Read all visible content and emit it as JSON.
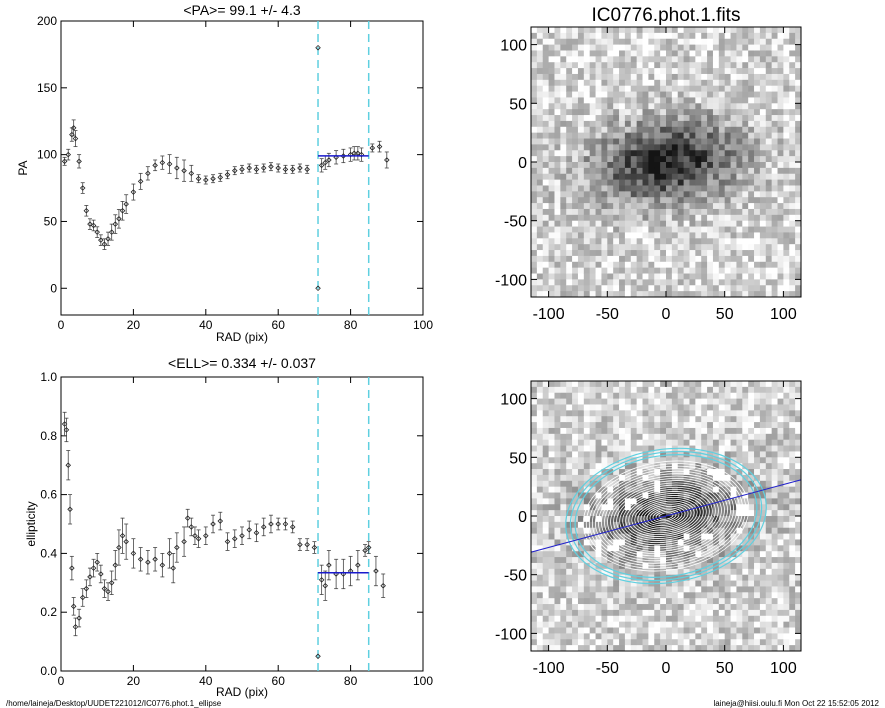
{
  "footer": {
    "left": "/home/laineja/Desktop/UUDET221012/IC0776.phot.1_ellipse",
    "right": "laineja@hiisi.oulu.fi  Mon Oct 22 15:52:05 2012"
  },
  "colors": {
    "mean_line": "#1a1acc",
    "range_line": "#5fd0e0",
    "ellipse": "#5fd0e0"
  },
  "chart_data": [
    {
      "id": "pa",
      "type": "scatter",
      "title": "<PA>=  99.1 +/-   4.3",
      "xlabel": "RAD (pix)",
      "ylabel": "PA",
      "xlim": [
        0,
        100
      ],
      "ylim": [
        -20,
        200
      ],
      "xticks": [
        0,
        20,
        40,
        60,
        80,
        100
      ],
      "yticks": [
        0,
        50,
        100,
        150,
        200
      ],
      "mean": 99.1,
      "mean_range": [
        71,
        85
      ],
      "vlines": [
        71,
        85
      ],
      "points": [
        [
          1,
          95,
          3
        ],
        [
          2,
          100,
          4
        ],
        [
          3,
          115,
          5
        ],
        [
          3.5,
          120,
          6
        ],
        [
          4,
          112,
          6
        ],
        [
          5,
          95,
          5
        ],
        [
          6,
          75,
          4
        ],
        [
          7,
          58,
          4
        ],
        [
          8,
          48,
          4
        ],
        [
          9,
          47,
          4
        ],
        [
          10,
          42,
          4
        ],
        [
          11,
          36,
          4
        ],
        [
          12,
          33,
          4
        ],
        [
          13,
          37,
          5
        ],
        [
          14,
          42,
          6
        ],
        [
          15,
          48,
          7
        ],
        [
          16,
          52,
          7
        ],
        [
          17,
          58,
          7
        ],
        [
          18,
          63,
          7
        ],
        [
          20,
          72,
          6
        ],
        [
          22,
          80,
          6
        ],
        [
          24,
          86,
          5
        ],
        [
          26,
          92,
          4
        ],
        [
          28,
          94,
          5
        ],
        [
          30,
          93,
          7
        ],
        [
          32,
          90,
          8
        ],
        [
          34,
          88,
          8
        ],
        [
          36,
          86,
          6
        ],
        [
          38,
          82,
          3
        ],
        [
          40,
          81,
          3
        ],
        [
          42,
          82,
          3
        ],
        [
          44,
          83,
          3
        ],
        [
          46,
          85,
          3
        ],
        [
          48,
          88,
          3
        ],
        [
          50,
          89,
          3
        ],
        [
          52,
          90,
          3
        ],
        [
          54,
          89,
          3
        ],
        [
          56,
          90,
          3
        ],
        [
          58,
          91,
          3
        ],
        [
          60,
          90,
          3
        ],
        [
          62,
          89,
          3
        ],
        [
          64,
          89,
          3
        ],
        [
          66,
          90,
          3
        ],
        [
          68,
          89,
          3
        ],
        [
          71,
          180,
          0
        ],
        [
          71,
          0,
          0
        ],
        [
          72,
          92,
          5
        ],
        [
          73,
          94,
          5
        ],
        [
          74,
          96,
          5
        ],
        [
          76,
          98,
          5
        ],
        [
          78,
          99,
          5
        ],
        [
          80,
          100,
          5
        ],
        [
          81,
          101,
          5
        ],
        [
          82,
          101,
          5
        ],
        [
          83,
          100,
          5
        ],
        [
          86,
          105,
          3
        ],
        [
          88,
          106,
          4
        ],
        [
          90,
          96,
          6
        ]
      ]
    },
    {
      "id": "image",
      "type": "heatmap",
      "title": "IC0776.phot.1.fits",
      "xlim": [
        -115,
        115
      ],
      "ylim": [
        -115,
        115
      ],
      "xticks": [
        -100,
        -50,
        0,
        50,
        100
      ],
      "yticks": [
        -100,
        -50,
        0,
        50,
        100
      ],
      "galaxy": {
        "center": [
          0,
          0
        ],
        "major": 70,
        "minor": 40,
        "pa": 99.1
      }
    },
    {
      "id": "ell",
      "type": "scatter",
      "title": "<ELL>= 0.334 +/-  0.037",
      "xlabel": "RAD (pix)",
      "ylabel": "ellipticity",
      "xlim": [
        0,
        100
      ],
      "ylim": [
        0,
        1
      ],
      "xticks": [
        0,
        20,
        40,
        60,
        80,
        100
      ],
      "yticks": [
        0.0,
        0.2,
        0.4,
        0.6,
        0.8,
        1.0
      ],
      "mean": 0.334,
      "mean_range": [
        71,
        85
      ],
      "vlines": [
        71,
        85
      ],
      "points": [
        [
          1,
          0.84,
          0.04
        ],
        [
          1.5,
          0.82,
          0.04
        ],
        [
          2,
          0.7,
          0.05
        ],
        [
          2.5,
          0.55,
          0.05
        ],
        [
          3,
          0.35,
          0.04
        ],
        [
          3.5,
          0.22,
          0.03
        ],
        [
          4,
          0.15,
          0.03
        ],
        [
          5,
          0.18,
          0.03
        ],
        [
          6,
          0.25,
          0.03
        ],
        [
          7,
          0.28,
          0.03
        ],
        [
          8,
          0.32,
          0.03
        ],
        [
          9,
          0.35,
          0.03
        ],
        [
          10,
          0.37,
          0.03
        ],
        [
          11,
          0.33,
          0.03
        ],
        [
          12,
          0.28,
          0.03
        ],
        [
          13,
          0.27,
          0.03
        ],
        [
          14,
          0.3,
          0.04
        ],
        [
          15,
          0.36,
          0.05
        ],
        [
          16,
          0.42,
          0.06
        ],
        [
          17,
          0.46,
          0.06
        ],
        [
          18,
          0.44,
          0.06
        ],
        [
          20,
          0.4,
          0.05
        ],
        [
          22,
          0.38,
          0.04
        ],
        [
          24,
          0.37,
          0.04
        ],
        [
          26,
          0.38,
          0.04
        ],
        [
          28,
          0.36,
          0.04
        ],
        [
          30,
          0.4,
          0.05
        ],
        [
          31,
          0.35,
          0.05
        ],
        [
          32,
          0.42,
          0.05
        ],
        [
          34,
          0.44,
          0.05
        ],
        [
          35,
          0.52,
          0.03
        ],
        [
          36,
          0.49,
          0.03
        ],
        [
          37,
          0.46,
          0.03
        ],
        [
          38,
          0.45,
          0.03
        ],
        [
          40,
          0.46,
          0.03
        ],
        [
          42,
          0.5,
          0.03
        ],
        [
          44,
          0.51,
          0.03
        ],
        [
          46,
          0.44,
          0.03
        ],
        [
          48,
          0.45,
          0.03
        ],
        [
          50,
          0.46,
          0.03
        ],
        [
          52,
          0.48,
          0.03
        ],
        [
          54,
          0.47,
          0.03
        ],
        [
          56,
          0.49,
          0.03
        ],
        [
          58,
          0.5,
          0.03
        ],
        [
          60,
          0.5,
          0.02
        ],
        [
          62,
          0.5,
          0.02
        ],
        [
          64,
          0.49,
          0.02
        ],
        [
          66,
          0.43,
          0.02
        ],
        [
          68,
          0.43,
          0.02
        ],
        [
          70,
          0.42,
          0.02
        ],
        [
          71,
          0.05,
          0
        ],
        [
          72,
          0.31,
          0.05
        ],
        [
          73,
          0.29,
          0.05
        ],
        [
          74,
          0.36,
          0.05
        ],
        [
          76,
          0.33,
          0.05
        ],
        [
          78,
          0.33,
          0.05
        ],
        [
          80,
          0.34,
          0.05
        ],
        [
          82,
          0.36,
          0.05
        ],
        [
          84,
          0.41,
          0.02
        ],
        [
          85,
          0.42,
          0.02
        ],
        [
          87,
          0.34,
          0.05
        ],
        [
          89,
          0.29,
          0.04
        ]
      ]
    },
    {
      "id": "isophotes",
      "type": "heatmap",
      "xlim": [
        -115,
        115
      ],
      "ylim": [
        -115,
        115
      ],
      "xticks": [
        -100,
        -50,
        0,
        50,
        100
      ],
      "yticks": [
        -100,
        -50,
        0,
        50,
        100
      ],
      "pa_line_angle_deg": 15
    }
  ]
}
